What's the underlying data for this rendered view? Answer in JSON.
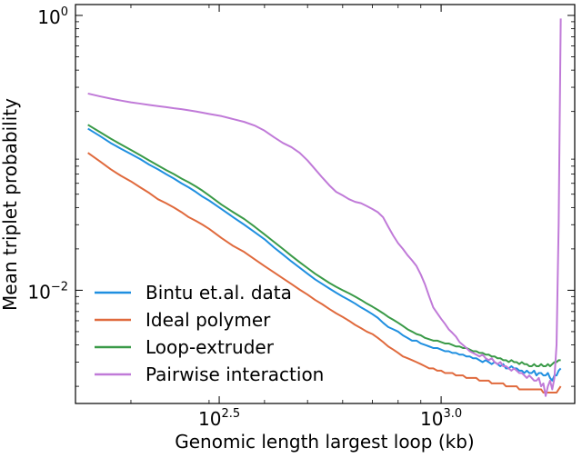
{
  "chart_data": {
    "type": "line",
    "xlabel": "Genomic length largest loop (kb)",
    "ylabel": "Mean triplet probability",
    "x_scale": "log10",
    "y_scale": "log10",
    "xlim": [
      150,
      2000
    ],
    "ylim": [
      0.0015,
      1.2
    ],
    "x_ticks": [
      {
        "value": 316.2,
        "base": "10",
        "exp": "2.5"
      },
      {
        "value": 1000,
        "base": "10",
        "exp": "3.0"
      }
    ],
    "y_ticks": [
      {
        "value": 0.01,
        "base": "10",
        "exp": "−2"
      },
      {
        "value": 1,
        "base": "10",
        "exp": "0"
      }
    ],
    "legend": {
      "placement": "lower-left"
    },
    "x": [
      160,
      170,
      180,
      190,
      200,
      210,
      220,
      230,
      240,
      250,
      260,
      270,
      280,
      290,
      300,
      320,
      340,
      360,
      380,
      400,
      420,
      440,
      460,
      480,
      500,
      520,
      540,
      560,
      580,
      600,
      620,
      640,
      660,
      680,
      700,
      720,
      740,
      760,
      780,
      800,
      820,
      840,
      860,
      880,
      900,
      920,
      940,
      960,
      980,
      1000,
      1020,
      1040,
      1060,
      1080,
      1100,
      1120,
      1140,
      1160,
      1180,
      1200,
      1220,
      1240,
      1260,
      1280,
      1300,
      1320,
      1340,
      1360,
      1380,
      1400,
      1420,
      1440,
      1460,
      1480,
      1500,
      1520,
      1540,
      1560,
      1580,
      1600,
      1620,
      1640,
      1660,
      1680,
      1700,
      1720,
      1740,
      1760,
      1780,
      1800,
      1820,
      1840,
      1860
    ],
    "series": [
      {
        "name": "Bintu et.al. data",
        "color": "#1f8fe0",
        "values": [
          0.15,
          0.133,
          0.118,
          0.107,
          0.098,
          0.09,
          0.082,
          0.076,
          0.07,
          0.065,
          0.06,
          0.056,
          0.052,
          0.048,
          0.045,
          0.039,
          0.034,
          0.03,
          0.0265,
          0.0235,
          0.0205,
          0.0182,
          0.0162,
          0.0146,
          0.0132,
          0.012,
          0.0111,
          0.0103,
          0.0096,
          0.009,
          0.0085,
          0.008,
          0.0075,
          0.0071,
          0.0067,
          0.0063,
          0.0058,
          0.0054,
          0.0052,
          0.005,
          0.0047,
          0.0045,
          0.0043,
          0.0043,
          0.0041,
          0.004,
          0.0039,
          0.0038,
          0.0038,
          0.0037,
          0.0036,
          0.0036,
          0.0035,
          0.0035,
          0.0034,
          0.0034,
          0.0033,
          0.0033,
          0.0032,
          0.0032,
          0.0031,
          0.003,
          0.0031,
          0.003,
          0.0029,
          0.003,
          0.0029,
          0.0028,
          0.0029,
          0.0027,
          0.0027,
          0.0028,
          0.0027,
          0.0027,
          0.0026,
          0.0026,
          0.0025,
          0.0026,
          0.0025,
          0.0025,
          0.0026,
          0.0024,
          0.0025,
          0.0025,
          0.0024,
          0.0024,
          0.0025,
          0.0023,
          0.0022,
          0.0024,
          0.0024,
          0.0026,
          0.0027
        ]
      },
      {
        "name": "Ideal polymer",
        "color": "#e06a3d",
        "values": [
          0.1,
          0.087,
          0.076,
          0.068,
          0.062,
          0.056,
          0.051,
          0.046,
          0.043,
          0.04,
          0.037,
          0.034,
          0.032,
          0.03,
          0.028,
          0.024,
          0.021,
          0.019,
          0.0168,
          0.015,
          0.0135,
          0.0122,
          0.0111,
          0.0101,
          0.0093,
          0.0085,
          0.0079,
          0.0073,
          0.0068,
          0.0064,
          0.006,
          0.0056,
          0.0053,
          0.005,
          0.0048,
          0.0045,
          0.0042,
          0.0039,
          0.0037,
          0.0035,
          0.0033,
          0.0032,
          0.0031,
          0.003,
          0.0029,
          0.0028,
          0.0027,
          0.0027,
          0.0026,
          0.0026,
          0.0025,
          0.0025,
          0.0025,
          0.0024,
          0.0024,
          0.0024,
          0.0023,
          0.0023,
          0.0023,
          0.0023,
          0.0022,
          0.0022,
          0.0022,
          0.0022,
          0.0021,
          0.0021,
          0.0021,
          0.0021,
          0.0021,
          0.002,
          0.002,
          0.002,
          0.002,
          0.002,
          0.0019,
          0.0019,
          0.0019,
          0.0019,
          0.0019,
          0.0019,
          0.0019,
          0.0019,
          0.0019,
          0.0019,
          0.0018,
          0.0018,
          0.0018,
          0.0018,
          0.0018,
          0.0018,
          0.0018,
          0.0019,
          0.002
        ]
      },
      {
        "name": "Loop-extruder",
        "color": "#3a9a48",
        "values": [
          0.16,
          0.142,
          0.127,
          0.115,
          0.105,
          0.096,
          0.088,
          0.081,
          0.075,
          0.07,
          0.065,
          0.061,
          0.057,
          0.053,
          0.049,
          0.042,
          0.037,
          0.033,
          0.029,
          0.0255,
          0.0225,
          0.02,
          0.0178,
          0.016,
          0.0145,
          0.0132,
          0.0122,
          0.0113,
          0.0106,
          0.01,
          0.0095,
          0.009,
          0.0085,
          0.008,
          0.0076,
          0.0072,
          0.0068,
          0.0064,
          0.0061,
          0.0058,
          0.0055,
          0.0052,
          0.005,
          0.0048,
          0.0047,
          0.0045,
          0.0044,
          0.0043,
          0.0043,
          0.0042,
          0.0041,
          0.0041,
          0.004,
          0.0039,
          0.0039,
          0.0038,
          0.0038,
          0.0037,
          0.0036,
          0.0036,
          0.0035,
          0.0035,
          0.0034,
          0.0034,
          0.0033,
          0.0033,
          0.0032,
          0.0032,
          0.0031,
          0.0031,
          0.003,
          0.0031,
          0.003,
          0.003,
          0.0029,
          0.003,
          0.0029,
          0.0029,
          0.0028,
          0.0028,
          0.0029,
          0.0028,
          0.0028,
          0.0029,
          0.0028,
          0.0028,
          0.0029,
          0.0028,
          0.0029,
          0.003,
          0.003,
          0.0031,
          0.0031
        ]
      },
      {
        "name": "Pairwise interaction",
        "color": "#c07ad8",
        "values": [
          0.27,
          0.258,
          0.248,
          0.24,
          0.233,
          0.228,
          0.223,
          0.219,
          0.215,
          0.211,
          0.208,
          0.204,
          0.2,
          0.196,
          0.192,
          0.185,
          0.176,
          0.168,
          0.158,
          0.145,
          0.13,
          0.118,
          0.11,
          0.1,
          0.088,
          0.076,
          0.066,
          0.058,
          0.052,
          0.049,
          0.046,
          0.044,
          0.043,
          0.041,
          0.039,
          0.037,
          0.034,
          0.029,
          0.025,
          0.022,
          0.02,
          0.018,
          0.0165,
          0.015,
          0.013,
          0.011,
          0.009,
          0.0075,
          0.0068,
          0.0062,
          0.0057,
          0.0052,
          0.0049,
          0.0046,
          0.0042,
          0.004,
          0.0038,
          0.0036,
          0.0035,
          0.0034,
          0.0033,
          0.0034,
          0.0032,
          0.0031,
          0.0032,
          0.003,
          0.0029,
          0.003,
          0.0028,
          0.0028,
          0.0027,
          0.0026,
          0.0027,
          0.0026,
          0.0025,
          0.0025,
          0.0024,
          0.0023,
          0.0024,
          0.0023,
          0.0022,
          0.0022,
          0.0023,
          0.002,
          0.0021,
          0.0017,
          0.002,
          0.0022,
          0.0019,
          0.0023,
          0.004,
          0.03,
          0.95
        ]
      }
    ]
  }
}
